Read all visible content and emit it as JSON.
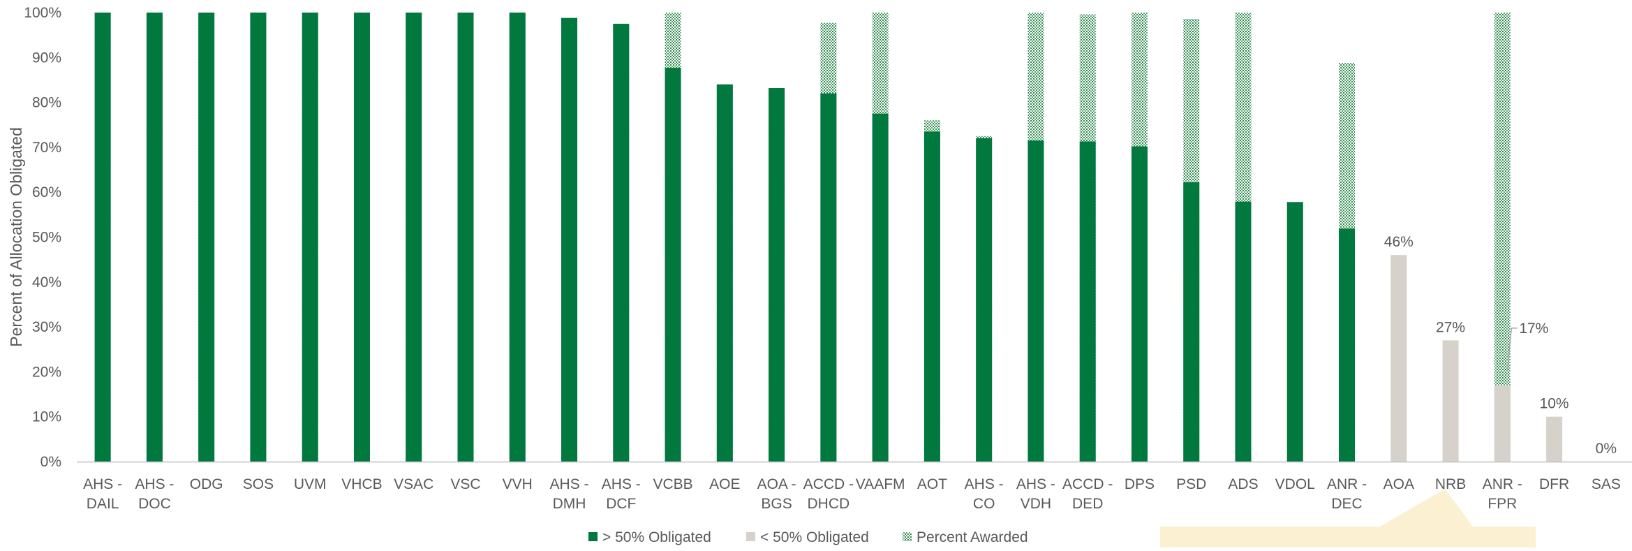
{
  "chart_data": {
    "type": "bar",
    "ylabel": "Percent of Allocation Obligated",
    "ylim": [
      0,
      100
    ],
    "ytick_labels": [
      "0%",
      "10%",
      "20%",
      "30%",
      "40%",
      "50%",
      "60%",
      "70%",
      "80%",
      "90%",
      "100%"
    ],
    "grid": false,
    "legend_position": "bottom",
    "categories": [
      [
        "AHS -",
        "DAIL"
      ],
      [
        "AHS -",
        "DOC"
      ],
      [
        "ODG"
      ],
      [
        "SOS"
      ],
      [
        "UVM"
      ],
      [
        "VHCB"
      ],
      [
        "VSAC"
      ],
      [
        "VSC"
      ],
      [
        "VVH"
      ],
      [
        "AHS -",
        "DMH"
      ],
      [
        "AHS -",
        "DCF"
      ],
      [
        "VCBB"
      ],
      [
        "AOE"
      ],
      [
        "AOA -",
        "BGS"
      ],
      [
        "ACCD -",
        "DHCD"
      ],
      [
        "VAAFM"
      ],
      [
        "AOT"
      ],
      [
        "AHS -",
        "CO"
      ],
      [
        "AHS -",
        "VDH"
      ],
      [
        "ACCD -",
        "DED"
      ],
      [
        "DPS"
      ],
      [
        "PSD"
      ],
      [
        "ADS"
      ],
      [
        "VDOL"
      ],
      [
        "ANR -",
        "DEC"
      ],
      [
        "AOA"
      ],
      [
        "NRB"
      ],
      [
        "ANR -",
        "FPR"
      ],
      [
        "DFR"
      ],
      [
        "SAS"
      ]
    ],
    "series": [
      {
        "name": "> 50% Obligated",
        "color": "#00783E",
        "values": [
          100,
          100,
          100,
          100,
          100,
          100,
          100,
          100,
          100,
          98.8,
          97.5,
          87.7,
          84,
          83.2,
          82,
          77.5,
          73.5,
          72,
          71.5,
          71.3,
          70.2,
          62.2,
          57.9,
          57.8,
          51.9,
          null,
          null,
          null,
          null,
          null
        ]
      },
      {
        "name": "< 50% Obligated",
        "color": "#D6D1CA",
        "values": [
          null,
          null,
          null,
          null,
          null,
          null,
          null,
          null,
          null,
          null,
          null,
          null,
          null,
          null,
          null,
          null,
          null,
          null,
          null,
          null,
          null,
          null,
          null,
          null,
          null,
          46,
          27,
          17,
          10,
          0
        ]
      },
      {
        "name": "Percent Awarded",
        "color": "#8FBF96",
        "pattern": "dots",
        "values": [
          100,
          100,
          100,
          100,
          100,
          100,
          100,
          100,
          100,
          98.8,
          97.5,
          100,
          84,
          83.2,
          97.7,
          100,
          76,
          72.5,
          100,
          99.6,
          100,
          98.6,
          100,
          57.8,
          88.8,
          null,
          null,
          100,
          null,
          null
        ]
      }
    ],
    "data_labels": [
      {
        "category_index": 25,
        "text": "46%"
      },
      {
        "category_index": 26,
        "text": "27%"
      },
      {
        "category_index": 27,
        "text": "17%"
      },
      {
        "category_index": 28,
        "text": "10%"
      },
      {
        "category_index": 29,
        "text": "0%"
      }
    ]
  },
  "legend": [
    {
      "label": "> 50% Obligated",
      "color": "#00783E",
      "pattern": "solid"
    },
    {
      "label": "< 50% Obligated",
      "color": "#D6D1CA",
      "pattern": "solid"
    },
    {
      "label": "Percent Awarded",
      "color": "#8FBF96",
      "pattern": "dots"
    }
  ],
  "colors": {
    "axis": "#BFBFBF",
    "text": "#595959",
    "highlight_band": "#FBF0D2"
  }
}
